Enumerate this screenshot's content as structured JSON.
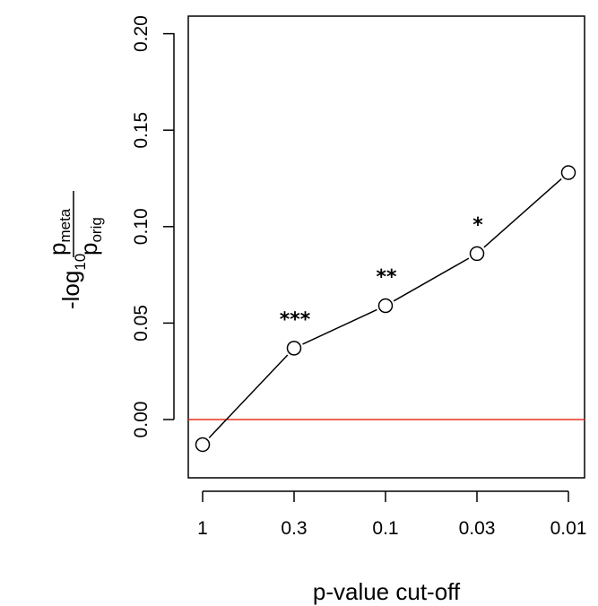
{
  "chart_data": {
    "type": "line",
    "x": [
      "1",
      "0.3",
      "0.1",
      "0.03",
      "0.01"
    ],
    "y": [
      -0.013,
      0.037,
      0.059,
      0.086,
      0.128
    ],
    "significance": [
      "",
      "***",
      "**",
      "*",
      ""
    ],
    "xlabel": "p-value cut-off",
    "ylabel": {
      "prefix": "-log",
      "subscript": "10",
      "numerator": "p",
      "numerator_sub": "meta",
      "denominator": "p",
      "denominator_sub": "orig"
    },
    "y_ticks": [
      "0.00",
      "0.05",
      "0.10",
      "0.15",
      "0.20"
    ],
    "y_tick_values": [
      0.0,
      0.05,
      0.1,
      0.15,
      0.2
    ],
    "ylim": [
      -0.03,
      0.2
    ],
    "reference_line": {
      "y": 0.0,
      "color": "#e8321f"
    },
    "point_style": "open-circle",
    "grid": false
  }
}
